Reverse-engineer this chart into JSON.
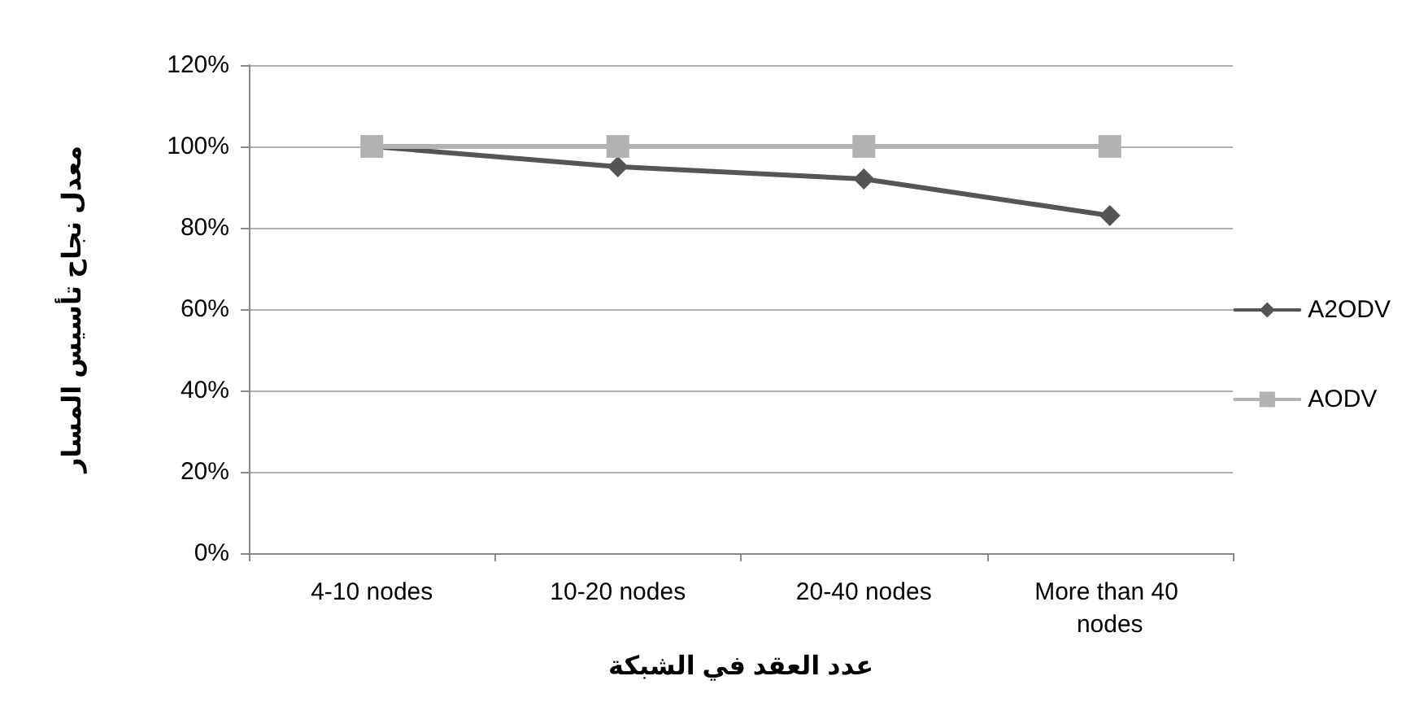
{
  "chart_data": {
    "type": "line",
    "xlabel": "عدد العقد في الشبكة",
    "ylabel": "معدل نجاح تأسيس المسار",
    "categories": [
      "4-10 nodes",
      "10-20 nodes",
      "20-40 nodes",
      "More than 40 nodes"
    ],
    "series": [
      {
        "name": "A2ODV",
        "color": "#555555",
        "marker": "diamond",
        "values": [
          100,
          95,
          92,
          83
        ]
      },
      {
        "name": "AODV",
        "color": "#b2b2b2",
        "marker": "square",
        "values": [
          100,
          100,
          100,
          100
        ]
      }
    ],
    "ylim": [
      0,
      120
    ],
    "yticks": [
      {
        "value": 0,
        "label": "0%"
      },
      {
        "value": 20,
        "label": "20%"
      },
      {
        "value": 40,
        "label": "40%"
      },
      {
        "value": 60,
        "label": "60%"
      },
      {
        "value": 80,
        "label": "80%"
      },
      {
        "value": 100,
        "label": "100%"
      },
      {
        "value": 120,
        "label": "120%"
      }
    ],
    "grid": "y",
    "legend": "right",
    "line_style": "solid"
  }
}
